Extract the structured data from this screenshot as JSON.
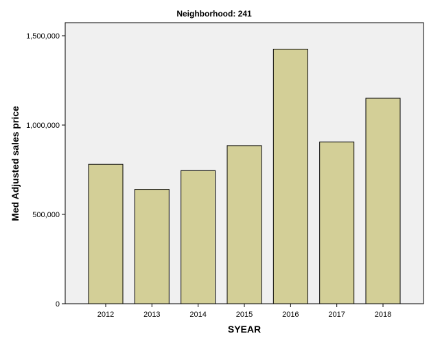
{
  "chart_data": {
    "type": "bar",
    "title": "Neighborhood: 241",
    "xlabel": "SYEAR",
    "ylabel": "Med Adjusted sales price",
    "categories": [
      "2012",
      "2013",
      "2014",
      "2015",
      "2016",
      "2017",
      "2018"
    ],
    "values": [
      780000,
      640000,
      745000,
      885000,
      1425000,
      905000,
      1150000
    ],
    "ylim": [
      0,
      1500000
    ],
    "yticks": [
      0,
      500000,
      1000000,
      1500000
    ],
    "ytick_labels": [
      "0",
      "500,000",
      "1,000,000",
      "1,500,000"
    ],
    "grid": false,
    "legend": "none",
    "colors": {
      "bar_fill": "#d3cf97",
      "bar_stroke": "#000000",
      "plot_background": "#f0f0f0",
      "axis": "#000000"
    }
  }
}
